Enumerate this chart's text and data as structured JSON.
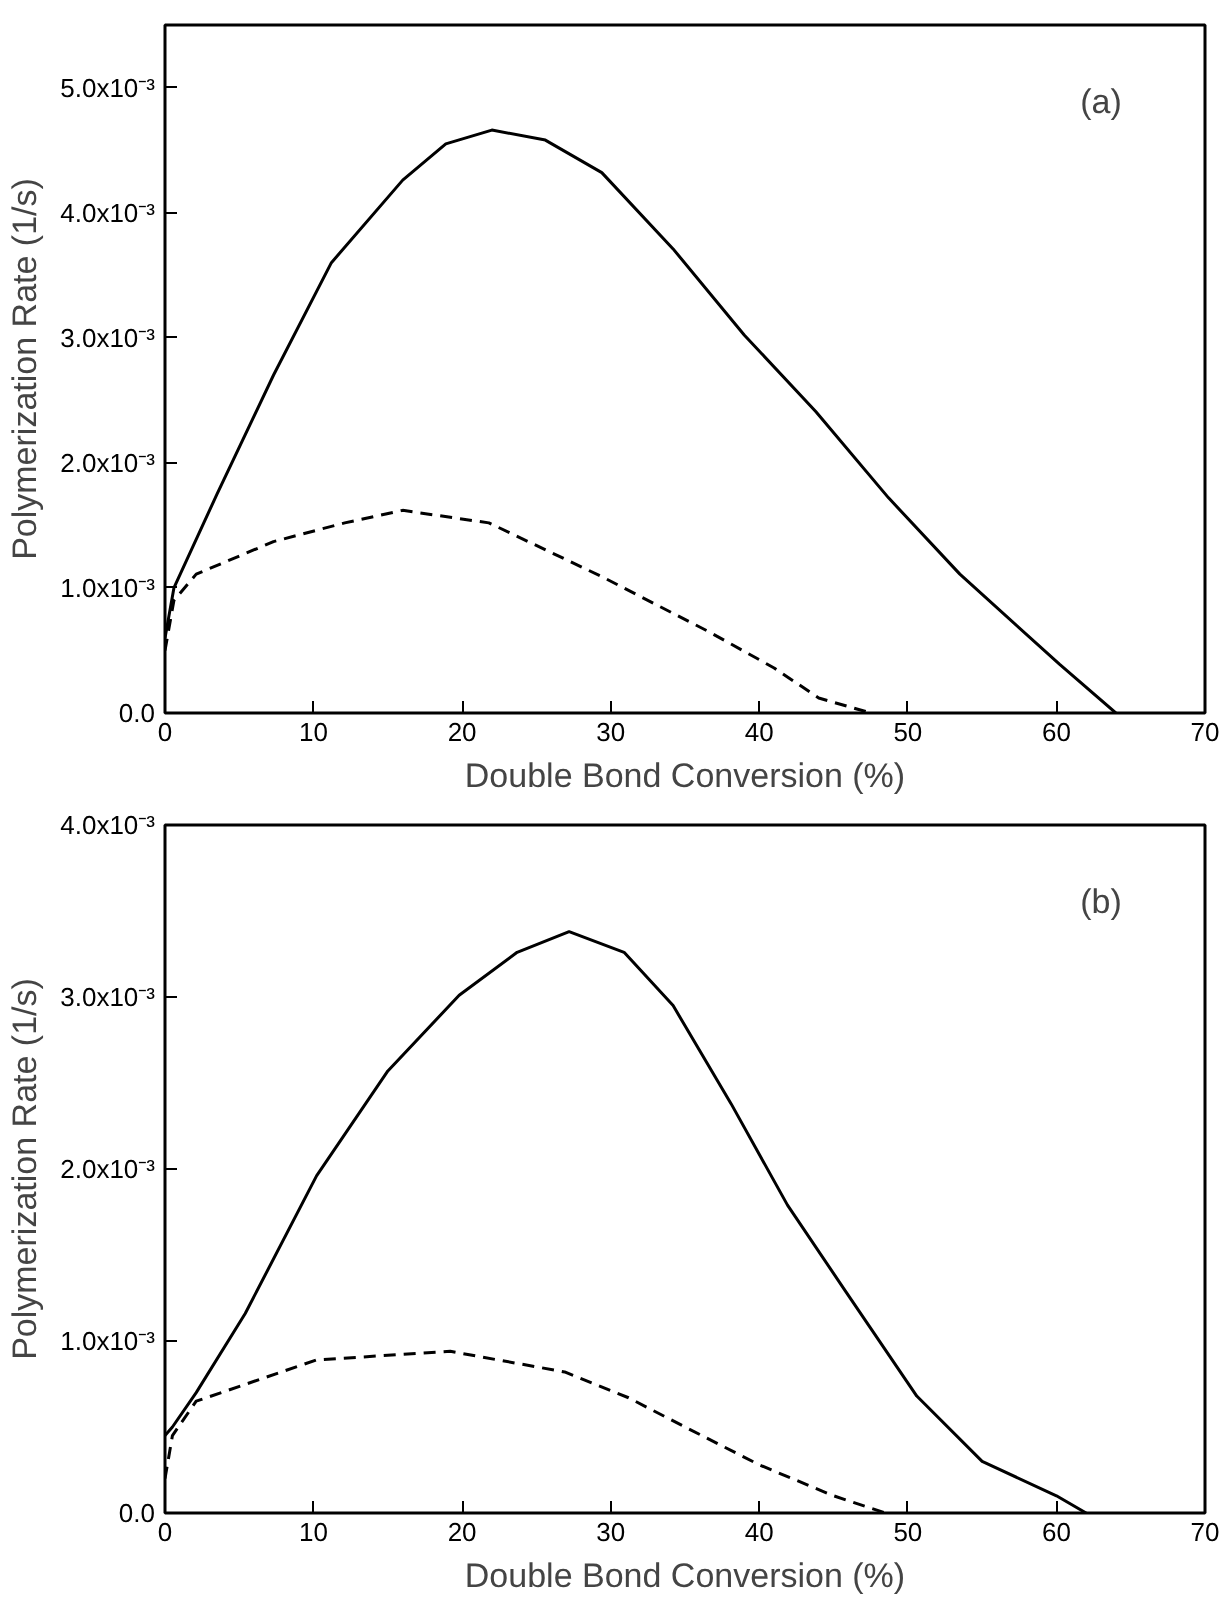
{
  "chart_data": [
    {
      "type": "line",
      "xlabel": "Double Bond Conversion (%)",
      "ylabel": "Polymerization Rate (1/s)",
      "annotations": [
        "(a)"
      ],
      "xlim": [
        0,
        70
      ],
      "xticks": [
        0,
        10,
        20,
        30,
        40,
        50,
        60,
        70
      ],
      "ylim": [
        0,
        0.0055
      ],
      "yticks": [
        {
          "value": 0,
          "label": "0.0"
        },
        {
          "value": 0.001,
          "label": "1.0x10⁻³"
        },
        {
          "value": 0.002,
          "label": "2.0x10⁻³"
        },
        {
          "value": 0.003,
          "label": "3.0x10⁻³"
        },
        {
          "value": 0.004,
          "label": "4.0x10⁻³"
        },
        {
          "value": 0.005,
          "label": "5.0x10⁻³"
        }
      ],
      "grid": false,
      "series": [
        {
          "color": "#000000",
          "line_style": "solid",
          "x": [
            0,
            0.6,
            3.5,
            7.3,
            11.2,
            16.0,
            18.9,
            22.0,
            25.6,
            29.4,
            34.2,
            39.0,
            43.8,
            48.7,
            53.5,
            60.2,
            64.0
          ],
          "values": [
            0.0006,
            0.001,
            0.00175,
            0.0027,
            0.0036,
            0.00426,
            0.00455,
            0.00466,
            0.00458,
            0.00432,
            0.00371,
            0.00302,
            0.00241,
            0.00172,
            0.00111,
            0.00039,
            0
          ]
        },
        {
          "color": "#000000",
          "line_style": "dashed",
          "x": [
            0,
            0.6,
            2.1,
            7.3,
            12.1,
            16.0,
            21.8,
            29.4,
            36.6,
            41.0,
            44.0,
            47.5
          ],
          "values": [
            0.0005,
            0.0009,
            0.00111,
            0.00137,
            0.00152,
            0.00162,
            0.00152,
            0.00109,
            0.00065,
            0.00036,
            0.00012,
            0
          ]
        }
      ]
    },
    {
      "type": "line",
      "xlabel": "Double Bond Conversion (%)",
      "ylabel": "Polymerization Rate (1/s)",
      "annotations": [
        "(b)"
      ],
      "xlim": [
        0,
        70
      ],
      "xticks": [
        0,
        10,
        20,
        30,
        40,
        50,
        60,
        70
      ],
      "ylim": [
        0,
        0.004
      ],
      "yticks": [
        {
          "value": 0,
          "label": "0.0"
        },
        {
          "value": 0.001,
          "label": "1.0x10⁻³"
        },
        {
          "value": 0.002,
          "label": "2.0x10⁻³"
        },
        {
          "value": 0.003,
          "label": "3.0x10⁻³"
        },
        {
          "value": 0.004,
          "label": "4.0x10⁻³"
        }
      ],
      "grid": false,
      "series": [
        {
          "color": "#000000",
          "line_style": "solid",
          "x": [
            0,
            0.5,
            2.1,
            5.4,
            10.2,
            15.0,
            19.8,
            23.7,
            27.2,
            30.9,
            34.2,
            38.1,
            41.9,
            45.8,
            50.6,
            55.0,
            60.0,
            62.0
          ],
          "values": [
            0.00045,
            0.0005,
            0.0007,
            0.00116,
            0.00196,
            0.00257,
            0.00301,
            0.00326,
            0.00338,
            0.00326,
            0.00295,
            0.00238,
            0.00179,
            0.00129,
            0.00068,
            0.0003,
            0.0001,
            0
          ]
        },
        {
          "color": "#000000",
          "line_style": "dashed",
          "x": [
            0,
            0.5,
            2.1,
            10.2,
            19.2,
            26.9,
            31.2,
            35.0,
            40.0,
            45.0,
            48.5
          ],
          "values": [
            0.0002,
            0.00045,
            0.00065,
            0.00089,
            0.00094,
            0.00082,
            0.00067,
            0.0005,
            0.00028,
            0.0001,
            0
          ]
        }
      ]
    }
  ]
}
